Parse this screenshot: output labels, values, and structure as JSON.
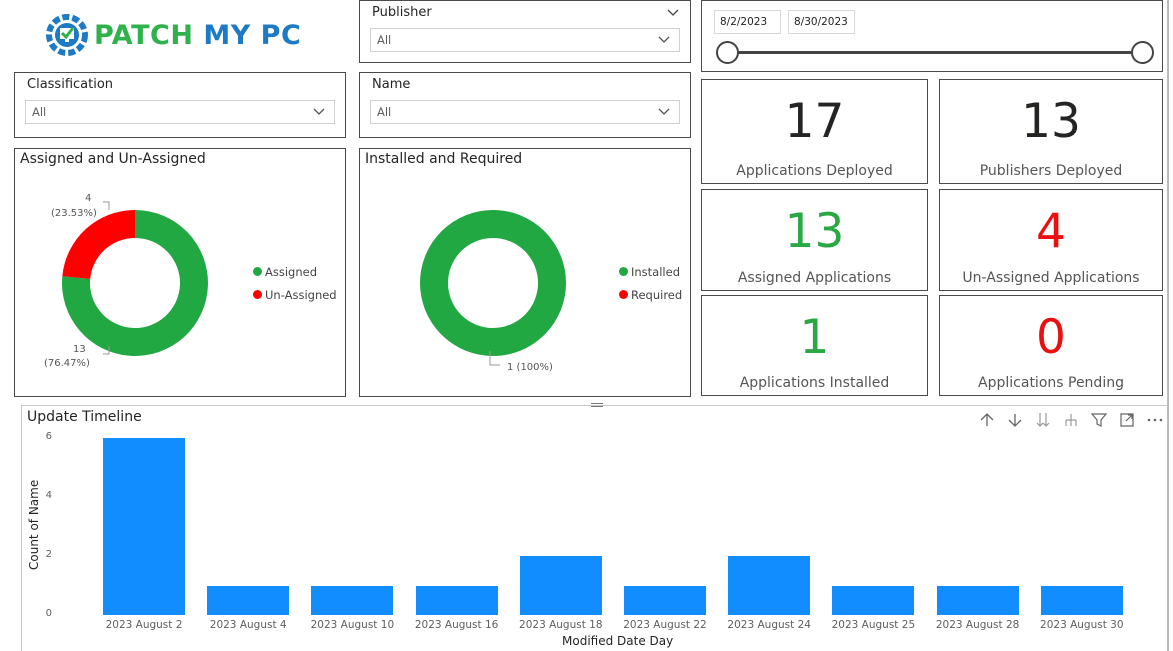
{
  "logo": {
    "text_part1": "PATCH",
    "text_part2": "MY PC",
    "colors": {
      "green": "#2fb14b",
      "blue": "#1f7ac4"
    }
  },
  "slicers": {
    "publisher": {
      "title": "Publisher",
      "value": "All"
    },
    "classification": {
      "title": "Classification",
      "value": "All"
    },
    "name": {
      "title": "Name",
      "value": "All"
    },
    "date_range": {
      "start": "8/2/2023",
      "end": "8/30/2023"
    }
  },
  "assigned_chart": {
    "title": "Assigned and Un-Assigned",
    "legend": [
      "Assigned",
      "Un-Assigned"
    ],
    "label_unassigned_count": "4",
    "label_unassigned_pct": "(23.53%)",
    "label_assigned_count": "13",
    "label_assigned_pct": "(76.47%)"
  },
  "installed_chart": {
    "title": "Installed and Required",
    "legend": [
      "Installed",
      "Required"
    ],
    "label_installed": "1 (100%)"
  },
  "kpis": [
    {
      "value": "17",
      "label": "Applications Deployed",
      "color": "#252423"
    },
    {
      "value": "13",
      "label": "Publishers Deployed",
      "color": "#252423"
    },
    {
      "value": "13",
      "label": "Assigned Applications",
      "color": "#2aa844"
    },
    {
      "value": "4",
      "label": "Un-Assigned Applications",
      "color": "#e81010"
    },
    {
      "value": "1",
      "label": "Applications Installed",
      "color": "#2aa844"
    },
    {
      "value": "0",
      "label": "Applications Pending",
      "color": "#e81010"
    }
  ],
  "colors": {
    "assigned": "#21a843",
    "unassigned": "#ff0000",
    "bar": "#118dff"
  },
  "timeline": {
    "title": "Update Timeline",
    "toolbar_icons": [
      "arrow-up-icon",
      "arrow-down-icon",
      "double-arrow-down-icon",
      "expand-hierarchy-icon",
      "filter-icon",
      "focus-mode-icon",
      "more-options-icon"
    ]
  },
  "chart_data": [
    {
      "type": "pie",
      "title": "Assigned and Un-Assigned",
      "categories": [
        "Assigned",
        "Un-Assigned"
      ],
      "values": [
        13,
        4
      ],
      "percent_labels": [
        "76.47%",
        "23.53%"
      ],
      "legend": "right"
    },
    {
      "type": "pie",
      "title": "Installed and Required",
      "categories": [
        "Installed",
        "Required"
      ],
      "values": [
        1,
        0
      ],
      "percent_labels": [
        "100%",
        "0%"
      ],
      "legend": "right"
    },
    {
      "type": "bar",
      "title": "Update Timeline",
      "categories": [
        "2023 August 2",
        "2023 August 4",
        "2023 August 10",
        "2023 August 16",
        "2023 August 18",
        "2023 August 22",
        "2023 August 24",
        "2023 August 25",
        "2023 August 28",
        "2023 August 30"
      ],
      "values": [
        6,
        1,
        1,
        1,
        2,
        1,
        2,
        1,
        1,
        1
      ],
      "xlabel": "Modified Date Day",
      "ylabel": "Count of Name",
      "ylim": [
        0,
        6
      ],
      "yticks": [
        "0",
        "2",
        "4",
        "6"
      ],
      "grid": false
    }
  ]
}
